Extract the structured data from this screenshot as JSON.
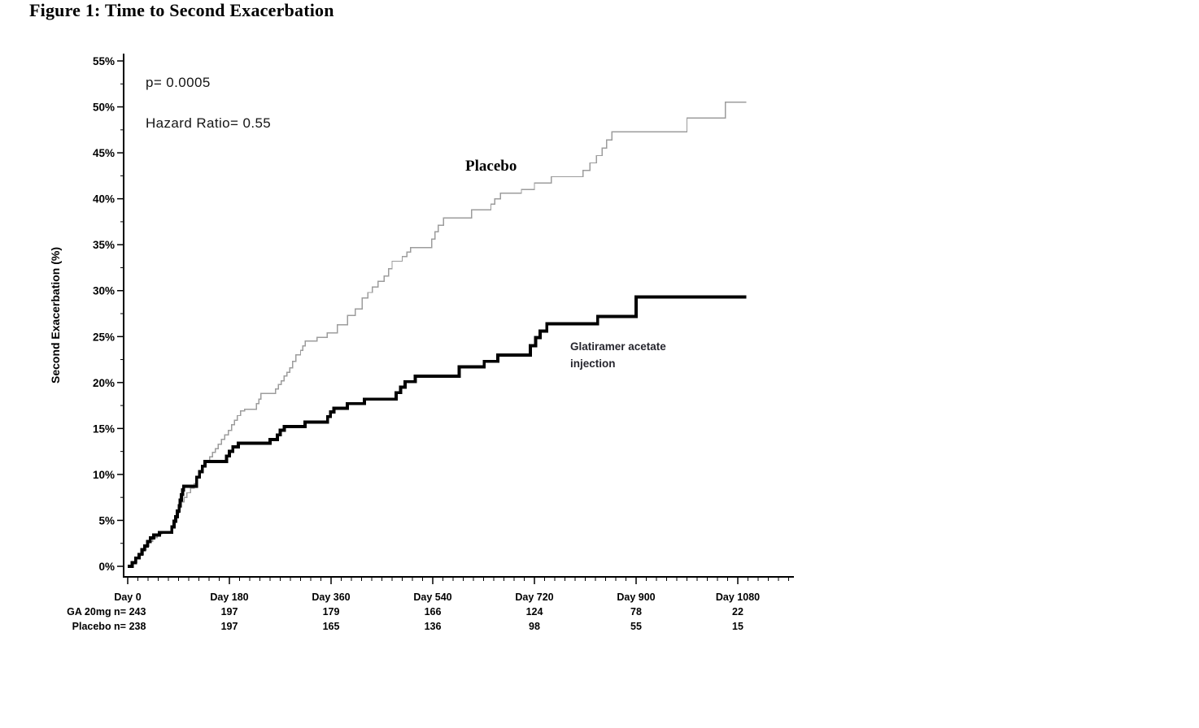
{
  "chart_data": {
    "type": "line",
    "subtype": "kaplan-meier-step",
    "title": "Figure 1: Time to Second Exacerbation",
    "xlabel": "Day",
    "ylabel": "Second Exacerbation (%)",
    "xlim": [
      0,
      1178
    ],
    "ylim": [
      0,
      55
    ],
    "grid": false,
    "annotations": {
      "p_value": "p= 0.0005",
      "hazard_ratio": "Hazard Ratio= 0.55"
    },
    "y_tick_labels": [
      "0%",
      "5%",
      "10%",
      "15%",
      "20%",
      "25%",
      "30%",
      "35%",
      "40%",
      "45%",
      "50%",
      "55%"
    ],
    "y_major_step": 5,
    "y_minor_step": 2.5,
    "x_tick_labels": [
      "Day 0",
      "Day 180",
      "Day 360",
      "Day 540",
      "Day 720",
      "Day 900",
      "Day 1080"
    ],
    "x_major_ticks": [
      0,
      180,
      360,
      540,
      720,
      900,
      1080
    ],
    "x_minor_step": 18,
    "x_minor_max": 1170,
    "series": [
      {
        "name": "Placebo",
        "color": "#9c9c9c",
        "width": 1.4,
        "end_day": 1095,
        "points": [
          [
            0,
            0
          ],
          [
            10,
            0.4
          ],
          [
            16,
            0.9
          ],
          [
            22,
            1.3
          ],
          [
            28,
            1.8
          ],
          [
            33,
            2.2
          ],
          [
            38,
            2.7
          ],
          [
            44,
            3.1
          ],
          [
            52,
            3.5
          ],
          [
            60,
            3.7
          ],
          [
            78,
            4.4
          ],
          [
            83,
            5.1
          ],
          [
            87,
            5.8
          ],
          [
            91,
            6.4
          ],
          [
            95,
            7.0
          ],
          [
            100,
            7.5
          ],
          [
            105,
            8.0
          ],
          [
            111,
            8.5
          ],
          [
            118,
            9.0
          ],
          [
            123,
            9.6
          ],
          [
            128,
            10.2
          ],
          [
            133,
            10.8
          ],
          [
            139,
            11.4
          ],
          [
            145,
            11.9
          ],
          [
            150,
            12.4
          ],
          [
            155,
            12.8
          ],
          [
            160,
            13.3
          ],
          [
            166,
            13.8
          ],
          [
            172,
            14.3
          ],
          [
            178,
            14.8
          ],
          [
            184,
            15.4
          ],
          [
            189,
            15.9
          ],
          [
            194,
            16.4
          ],
          [
            200,
            16.9
          ],
          [
            207,
            17.1
          ],
          [
            228,
            17.7
          ],
          [
            232,
            18.2
          ],
          [
            236,
            18.8
          ],
          [
            262,
            19.3
          ],
          [
            267,
            19.8
          ],
          [
            272,
            20.2
          ],
          [
            277,
            20.7
          ],
          [
            282,
            21.1
          ],
          [
            287,
            21.6
          ],
          [
            292,
            22.3
          ],
          [
            298,
            23.0
          ],
          [
            306,
            23.5
          ],
          [
            310,
            24.0
          ],
          [
            314,
            24.5
          ],
          [
            335,
            24.9
          ],
          [
            353,
            25.4
          ],
          [
            371,
            26.3
          ],
          [
            389,
            27.3
          ],
          [
            403,
            28.0
          ],
          [
            415,
            29.2
          ],
          [
            425,
            29.8
          ],
          [
            433,
            30.4
          ],
          [
            443,
            31.0
          ],
          [
            454,
            31.6
          ],
          [
            462,
            32.4
          ],
          [
            468,
            33.2
          ],
          [
            486,
            33.7
          ],
          [
            494,
            34.2
          ],
          [
            501,
            34.7
          ],
          [
            538,
            35.6
          ],
          [
            544,
            36.4
          ],
          [
            550,
            37.1
          ],
          [
            559,
            37.9
          ],
          [
            609,
            38.8
          ],
          [
            643,
            39.4
          ],
          [
            650,
            40.0
          ],
          [
            660,
            40.6
          ],
          [
            697,
            41.0
          ],
          [
            720,
            41.7
          ],
          [
            750,
            42.4
          ],
          [
            806,
            43.1
          ],
          [
            818,
            43.9
          ],
          [
            830,
            44.7
          ],
          [
            840,
            45.5
          ],
          [
            848,
            46.4
          ],
          [
            857,
            47.3
          ],
          [
            990,
            48.8
          ],
          [
            1058,
            50.5
          ]
        ]
      },
      {
        "name": "Glatiramer acetate injection",
        "color": "#000000",
        "width": 3.8,
        "end_day": 1095,
        "points": [
          [
            0,
            0
          ],
          [
            8,
            0.4
          ],
          [
            14,
            0.9
          ],
          [
            20,
            1.3
          ],
          [
            25,
            1.8
          ],
          [
            30,
            2.2
          ],
          [
            35,
            2.7
          ],
          [
            40,
            3.1
          ],
          [
            46,
            3.4
          ],
          [
            56,
            3.7
          ],
          [
            78,
            4.3
          ],
          [
            82,
            4.9
          ],
          [
            85,
            5.4
          ],
          [
            88,
            6.0
          ],
          [
            91,
            6.6
          ],
          [
            93,
            7.2
          ],
          [
            95,
            7.8
          ],
          [
            97,
            8.3
          ],
          [
            99,
            8.7
          ],
          [
            122,
            9.7
          ],
          [
            127,
            10.3
          ],
          [
            132,
            10.9
          ],
          [
            137,
            11.4
          ],
          [
            175,
            12.0
          ],
          [
            180,
            12.5
          ],
          [
            186,
            13.0
          ],
          [
            196,
            13.4
          ],
          [
            252,
            13.8
          ],
          [
            265,
            14.3
          ],
          [
            270,
            14.8
          ],
          [
            277,
            15.2
          ],
          [
            314,
            15.7
          ],
          [
            354,
            16.3
          ],
          [
            359,
            16.8
          ],
          [
            365,
            17.2
          ],
          [
            389,
            17.7
          ],
          [
            419,
            18.2
          ],
          [
            475,
            18.9
          ],
          [
            483,
            19.5
          ],
          [
            491,
            20.1
          ],
          [
            509,
            20.7
          ],
          [
            587,
            21.7
          ],
          [
            631,
            22.3
          ],
          [
            655,
            23.0
          ],
          [
            713,
            24.0
          ],
          [
            722,
            24.9
          ],
          [
            730,
            25.6
          ],
          [
            742,
            26.4
          ],
          [
            832,
            27.2
          ],
          [
            900,
            29.3
          ]
        ]
      }
    ],
    "risk_table": {
      "rows": [
        {
          "label": "GA 20mg n=",
          "counts": [
            "243",
            "197",
            "179",
            "166",
            "124",
            "78",
            "22"
          ]
        },
        {
          "label": "Placebo n=",
          "counts": [
            "238",
            "197",
            "165",
            "136",
            "98",
            "55",
            "15"
          ]
        }
      ]
    }
  }
}
